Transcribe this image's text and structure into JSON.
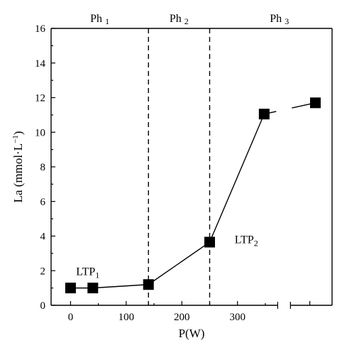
{
  "chart_data": {
    "type": "line",
    "xlabel": "P(W)",
    "ylabel": "La (mmol·L",
    "ylabel_sup": "−1",
    "ylabel_close": ")",
    "xlim": [
      -35,
      470
    ],
    "ylim": [
      0,
      16
    ],
    "x_ticks": [
      0,
      100,
      200,
      300
    ],
    "x_tick_labels": [
      "0",
      "100",
      "200",
      "300"
    ],
    "y_ticks": [
      0,
      2,
      4,
      6,
      8,
      10,
      12,
      14,
      16
    ],
    "y_tick_labels": [
      "0",
      "2",
      "4",
      "6",
      "8",
      "10",
      "12",
      "14",
      "16"
    ],
    "axis_break_after": 385,
    "series": [
      {
        "marker": "square",
        "color": "#000000",
        "points": [
          {
            "x": 0,
            "y": 1.0
          },
          {
            "x": 40,
            "y": 1.0
          },
          {
            "x": 140,
            "y": 1.2
          },
          {
            "x": 250,
            "y": 3.65
          },
          {
            "x": 348,
            "y": 11.05
          },
          {
            "x": 440,
            "y": 11.7
          }
        ]
      }
    ],
    "phase_boundaries": [
      140,
      250
    ],
    "phases": [
      {
        "base": "Ph",
        "sub": "1"
      },
      {
        "base": "Ph",
        "sub": "2"
      },
      {
        "base": "Ph",
        "sub": "3"
      }
    ],
    "annotations": [
      {
        "base": "LTP",
        "sub": "1"
      },
      {
        "base": "LTP",
        "sub": "2"
      }
    ]
  }
}
